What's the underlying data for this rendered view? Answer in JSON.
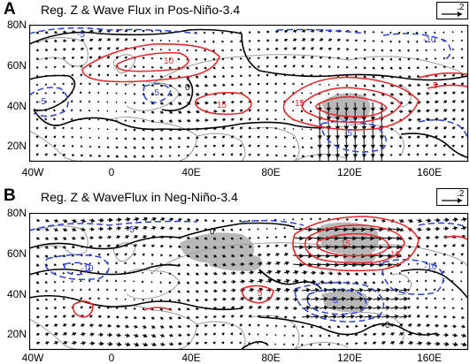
{
  "panels": [
    {
      "letter": "A",
      "title": "Reg. Z & Wave Flux in Pos-Niño-3.4",
      "ref_vector_label": ".2",
      "y_labels": [
        "80N",
        "60N",
        "40N",
        "20N"
      ],
      "x_labels": [
        "40W",
        "0",
        "40E",
        "80E",
        "120E",
        "160E"
      ],
      "contour_labels": [
        {
          "text": "-5",
          "kind": "negative"
        },
        {
          "text": "-5",
          "kind": "negative"
        },
        {
          "text": "10",
          "kind": "positive"
        },
        {
          "text": "-5",
          "kind": "negative"
        },
        {
          "text": "0",
          "kind": "zero"
        },
        {
          "text": "15",
          "kind": "positive"
        },
        {
          "text": "-10",
          "kind": "negative"
        },
        {
          "text": "15",
          "kind": "positive"
        },
        {
          "text": "5",
          "kind": "positive"
        },
        {
          "text": "-5",
          "kind": "negative"
        }
      ]
    },
    {
      "letter": "B",
      "title": "Reg. Z & WaveFlux in Neg-Niño-3.4",
      "ref_vector_label": ".2",
      "y_labels": [
        "80N",
        "60N",
        "40N",
        "20N"
      ],
      "x_labels": [
        "40W",
        "0",
        "40E",
        "80E",
        "120E",
        "160E"
      ],
      "contour_labels": [
        {
          "text": "-5",
          "kind": "negative"
        },
        {
          "text": "-10",
          "kind": "negative"
        },
        {
          "text": "0",
          "kind": "zero"
        },
        {
          "text": "15",
          "kind": "positive"
        },
        {
          "text": "5",
          "kind": "positive"
        },
        {
          "text": "-10",
          "kind": "negative"
        },
        {
          "text": "-5",
          "kind": "negative"
        },
        {
          "text": "10",
          "kind": "positive"
        },
        {
          "text": "0",
          "kind": "zero"
        }
      ]
    }
  ],
  "colors": {
    "positive_contour": "#e8282a",
    "negative_contour": "#2a3fd6",
    "zero_contour": "#000000",
    "shading": "#b8b8b8",
    "coastline": "#9a9a9a",
    "vector": "#000000"
  }
}
